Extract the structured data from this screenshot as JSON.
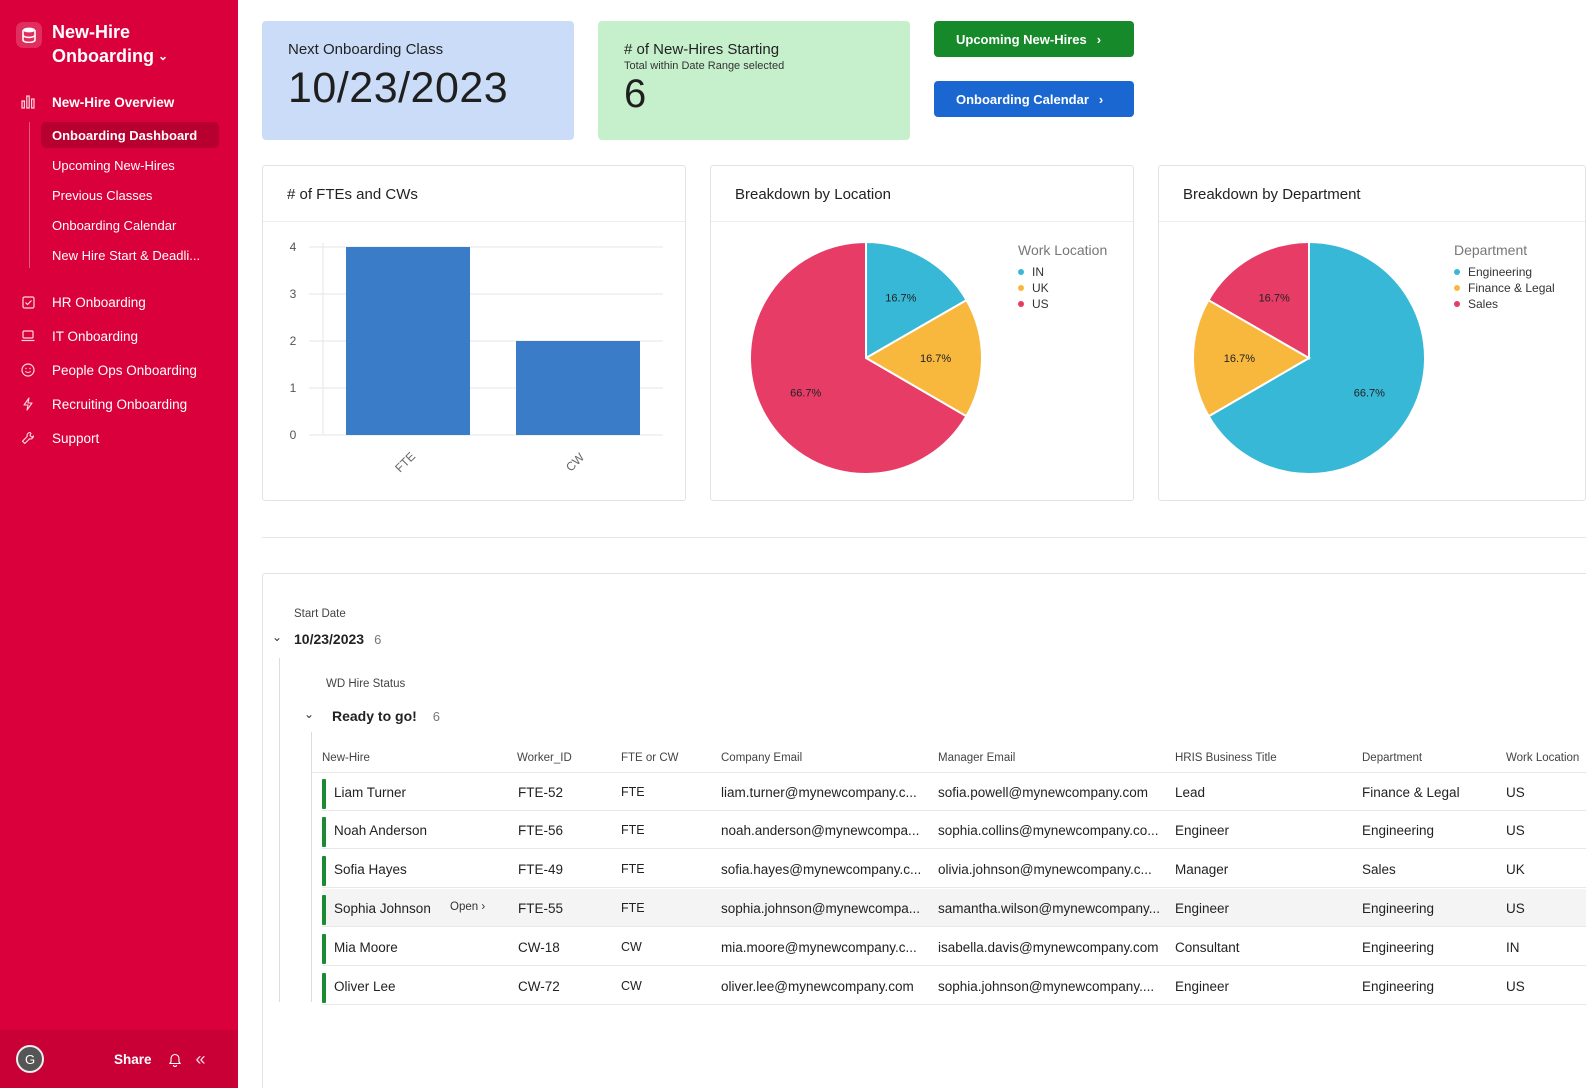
{
  "app": {
    "title": "New-Hire Onboarding"
  },
  "sidebar": {
    "section_overview": "New-Hire Overview",
    "sub_items": [
      {
        "label": "Onboarding Dashboard",
        "active": true
      },
      {
        "label": "Upcoming New-Hires"
      },
      {
        "label": "Previous Classes"
      },
      {
        "label": "Onboarding Calendar"
      },
      {
        "label": "New Hire Start & Deadli..."
      }
    ],
    "items": [
      {
        "label": "HR Onboarding",
        "icon": "checkbox-icon"
      },
      {
        "label": "IT Onboarding",
        "icon": "laptop-icon"
      },
      {
        "label": "People Ops Onboarding",
        "icon": "smiley-icon"
      },
      {
        "label": "Recruiting Onboarding",
        "icon": "lightning-icon"
      },
      {
        "label": "Support",
        "icon": "wrench-icon"
      }
    ],
    "footer": {
      "avatar_initial": "G",
      "share_label": "Share"
    }
  },
  "kpis": {
    "next_class": {
      "title": "Next Onboarding Class",
      "value": "10/23/2023"
    },
    "new_hires": {
      "title": "# of New-Hires Starting",
      "subtitle": "Total within Date Range selected",
      "value": "6"
    }
  },
  "buttons": {
    "upcoming": "Upcoming New-Hires",
    "calendar": "Onboarding Calendar"
  },
  "colors": {
    "brand": "#d9003b",
    "bar": "#3a7cc7",
    "teal": "#36b8d6",
    "orange": "#f7b83d",
    "pink": "#e63c66"
  },
  "chart_data": [
    {
      "type": "bar",
      "title": "# of FTEs and CWs",
      "categories": [
        "FTE",
        "CW"
      ],
      "values": [
        4,
        2
      ],
      "ylim": [
        0,
        4
      ],
      "yticks": [
        "0",
        "1",
        "2",
        "3",
        "4"
      ],
      "grid": true
    },
    {
      "type": "pie",
      "title": "Breakdown by Location",
      "legend_title": "Work Location",
      "legend_position": "top-right",
      "labels": [
        "IN",
        "UK",
        "US"
      ],
      "values": [
        16.7,
        16.7,
        66.7
      ],
      "value_labels": [
        "16.7%",
        "16.7%",
        "66.7%"
      ],
      "colors": [
        "#36b8d6",
        "#f7b83d",
        "#e63c66"
      ]
    },
    {
      "type": "pie",
      "title": "Breakdown by Department",
      "legend_title": "Department",
      "legend_position": "top-right",
      "labels": [
        "Engineering",
        "Finance & Legal",
        "Sales"
      ],
      "values": [
        66.7,
        16.7,
        16.7
      ],
      "value_labels": [
        "66.7%",
        "16.7%",
        "16.7%"
      ],
      "colors": [
        "#36b8d6",
        "#f7b83d",
        "#e63c66"
      ]
    }
  ],
  "table": {
    "group1_label": "Start Date",
    "group1_value": "10/23/2023",
    "group1_count": "6",
    "group2_label": "WD Hire Status",
    "group2_value": "Ready to go!",
    "group2_count": "6",
    "open_label": "Open",
    "columns": [
      "New-Hire",
      "Worker_ID",
      "FTE or CW",
      "Company Email",
      "Manager Email",
      "HRIS Business Title",
      "Department",
      "Work Location"
    ],
    "rows": [
      [
        "Liam Turner",
        "FTE-52",
        "FTE",
        "liam.turner@mynewcompany.c...",
        "sofia.powell@mynewcompany.com",
        "Lead",
        "Finance & Legal",
        "US"
      ],
      [
        "Noah Anderson",
        "FTE-56",
        "FTE",
        "noah.anderson@mynewcompa...",
        "sophia.collins@mynewcompany.co...",
        "Engineer",
        "Engineering",
        "US"
      ],
      [
        "Sofia Hayes",
        "FTE-49",
        "FTE",
        "sofia.hayes@mynewcompany.c...",
        "olivia.johnson@mynewcompany.c...",
        "Manager",
        "Sales",
        "UK"
      ],
      [
        "Sophia Johnson",
        "FTE-55",
        "FTE",
        "sophia.johnson@mynewcompa...",
        "samantha.wilson@mynewcompany...",
        "Engineer",
        "Engineering",
        "US"
      ],
      [
        "Mia Moore",
        "CW-18",
        "CW",
        "mia.moore@mynewcompany.c...",
        "isabella.davis@mynewcompany.com",
        "Consultant",
        "Engineering",
        "IN"
      ],
      [
        "Oliver Lee",
        "CW-72",
        "CW",
        "oliver.lee@mynewcompany.com",
        "sophia.johnson@mynewcompany....",
        "Engineer",
        "Engineering",
        "US"
      ]
    ]
  }
}
